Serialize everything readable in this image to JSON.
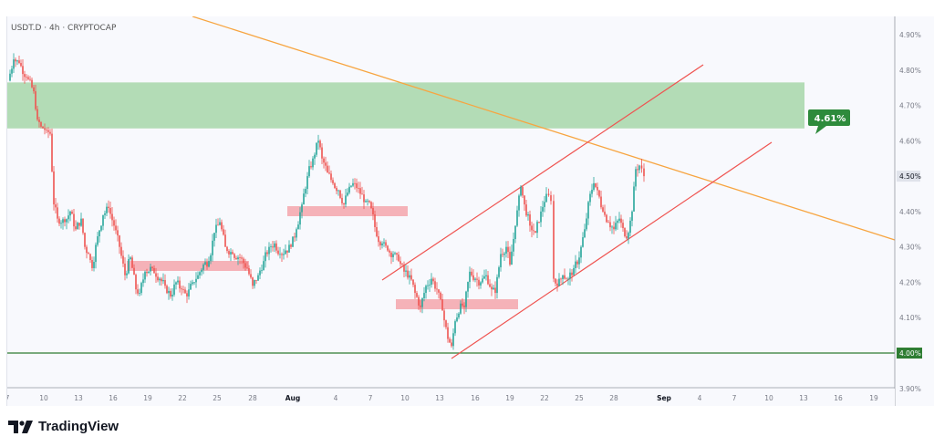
{
  "header": {
    "symbol_title": "USDT.D · 4h · CRYPTOCAP"
  },
  "branding": {
    "logo_mark": "17",
    "logo_text": "TradingView"
  },
  "colors": {
    "background": "#f8f9fd",
    "bull": "#26a69a",
    "bear": "#ef5350",
    "resistance_zone": "#b3dcb6",
    "support_zone": "#f5a6ac",
    "trendline": "#f7a541",
    "channel": "#ef5350",
    "support_line": "#2e7d32",
    "label_green": "#2e8b3c"
  },
  "chart_data": {
    "type": "candlestick",
    "title": "USDT.D · 4h · CRYPTOCAP",
    "xlabel": "",
    "ylabel": "",
    "ylim": [
      3.9,
      4.92
    ],
    "y_ticks": [
      "4.90%",
      "4.80%",
      "4.70%",
      "4.60%",
      "4.50%",
      "4.40%",
      "4.30%",
      "4.20%",
      "4.10%",
      "4.00%",
      "3.90%"
    ],
    "x_ticks": [
      "7",
      "10",
      "13",
      "16",
      "19",
      "22",
      "25",
      "28",
      "Aug",
      "4",
      "7",
      "10",
      "13",
      "16",
      "19",
      "22",
      "25",
      "28",
      "Sep",
      "4",
      "7",
      "10",
      "13",
      "16",
      "19"
    ],
    "price_path": [
      {
        "date": "Jul 7",
        "value": 4.77
      },
      {
        "date": "Jul 8",
        "value": 4.83
      },
      {
        "date": "Jul 9",
        "value": 4.72
      },
      {
        "date": "Jul 10",
        "value": 4.64
      },
      {
        "date": "Jul 11",
        "value": 4.38
      },
      {
        "date": "Jul 13",
        "value": 4.36
      },
      {
        "date": "Jul 14",
        "value": 4.42
      },
      {
        "date": "Jul 15",
        "value": 4.27
      },
      {
        "date": "Jul 16",
        "value": 4.33
      },
      {
        "date": "Jul 17",
        "value": 4.22
      },
      {
        "date": "Jul 18",
        "value": 4.17
      },
      {
        "date": "Jul 19",
        "value": 4.25
      },
      {
        "date": "Jul 21",
        "value": 4.2
      },
      {
        "date": "Jul 22",
        "value": 4.16
      },
      {
        "date": "Jul 24",
        "value": 4.27
      },
      {
        "date": "Jul 25",
        "value": 4.37
      },
      {
        "date": "Jul 26",
        "value": 4.29
      },
      {
        "date": "Jul 28",
        "value": 4.23
      },
      {
        "date": "Jul 30",
        "value": 4.29
      },
      {
        "date": "Aug 1",
        "value": 4.35
      },
      {
        "date": "Aug 2",
        "value": 4.45
      },
      {
        "date": "Aug 3",
        "value": 4.6
      },
      {
        "date": "Aug 4",
        "value": 4.52
      },
      {
        "date": "Aug 5",
        "value": 4.43
      },
      {
        "date": "Aug 6",
        "value": 4.49
      },
      {
        "date": "Aug 7",
        "value": 4.4
      },
      {
        "date": "Aug 8",
        "value": 4.31
      },
      {
        "date": "Aug 10",
        "value": 4.23
      },
      {
        "date": "Aug 11",
        "value": 4.2
      },
      {
        "date": "Aug 12",
        "value": 4.11
      },
      {
        "date": "Aug 13",
        "value": 4.02
      },
      {
        "date": "Aug 14",
        "value": 4.13
      },
      {
        "date": "Aug 15",
        "value": 4.23
      },
      {
        "date": "Aug 17",
        "value": 4.2
      },
      {
        "date": "Aug 18",
        "value": 4.3
      },
      {
        "date": "Aug 19",
        "value": 4.46
      },
      {
        "date": "Aug 20",
        "value": 4.33
      },
      {
        "date": "Aug 21",
        "value": 4.45
      },
      {
        "date": "Aug 22",
        "value": 4.2
      },
      {
        "date": "Aug 24",
        "value": 4.25
      },
      {
        "date": "Aug 25",
        "value": 4.36
      },
      {
        "date": "Aug 26",
        "value": 4.5
      },
      {
        "date": "Aug 27",
        "value": 4.37
      },
      {
        "date": "Aug 28",
        "value": 4.33
      },
      {
        "date": "Aug 29",
        "value": 4.53
      },
      {
        "date": "Aug 30",
        "value": 4.5
      }
    ],
    "current_price": "4.50%",
    "annotations": [
      {
        "type": "resistance_zone",
        "from": 4.635,
        "to": 4.765
      },
      {
        "type": "support_line",
        "value": 4.0,
        "label": "4.00%"
      },
      {
        "type": "target_label",
        "value": "4.61%"
      },
      {
        "type": "flip_zone",
        "value": 4.4
      },
      {
        "type": "flip_zone",
        "value": 4.25
      },
      {
        "type": "flip_zone",
        "value": 4.14
      },
      {
        "type": "descending_trendline",
        "color": "orange"
      },
      {
        "type": "ascending_channel",
        "color": "red"
      }
    ],
    "grid": false,
    "legend": null
  }
}
